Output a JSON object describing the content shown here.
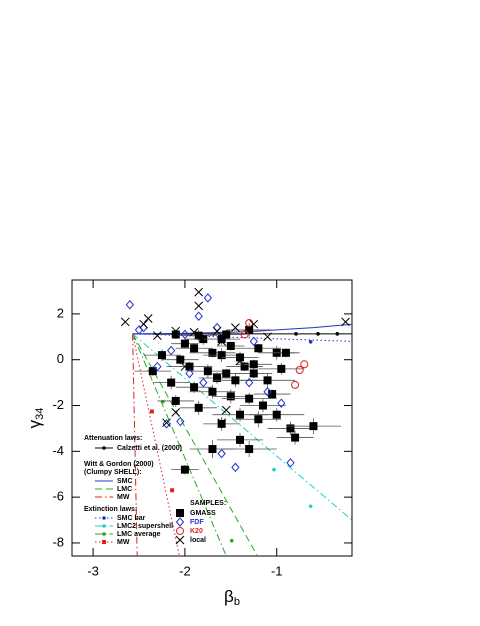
{
  "chart_data": {
    "type": "scatter",
    "x_label": "β",
    "x_label_sub": "b",
    "y_label": "γ",
    "y_label_sub": "34",
    "xlim": [
      -3.23,
      -0.18
    ],
    "ylim": [
      -8.57,
      3.48
    ],
    "xticks": [
      -3,
      -2,
      -1
    ],
    "yticks": [
      2,
      0,
      -2,
      -4,
      -6,
      -8
    ],
    "annotations": [
      "Attenuation laws:",
      "Witt & Gordon (2000)",
      "(Clumpy SHELL):",
      "Extinction laws:",
      "SAMPLES:"
    ],
    "series": [
      {
        "name": "Calzetti et al. (2000)",
        "color": "#000000",
        "dash": "solid",
        "marker": "dot",
        "x": [
          -2.57,
          -0.18
        ],
        "values": [
          1.13,
          1.13
        ],
        "marker_x": [
          -0.79,
          -0.55,
          -0.34
        ],
        "marker_values": [
          1.13,
          1.13,
          1.13
        ]
      },
      {
        "name": "SMC",
        "color": "#2233cc",
        "dash": "solid",
        "x": [
          -2.57,
          -2.0,
          -1.5,
          -1.2,
          -1.0,
          -0.6,
          -0.18
        ],
        "values": [
          1.13,
          1.15,
          1.2,
          1.25,
          1.3,
          1.4,
          1.55
        ]
      },
      {
        "name": "LMC",
        "color": "#22aa22",
        "dash": "dash",
        "x": [
          -2.57,
          -1.21
        ],
        "values": [
          1.13,
          -8.57
        ]
      },
      {
        "name": "MW",
        "color": "#dd2222",
        "dash": "dashdot",
        "x": [
          -2.57,
          -2.52
        ],
        "values": [
          1.13,
          -8.57
        ]
      },
      {
        "name": "SMC bar",
        "color": "#2233cc",
        "dash": "dot",
        "marker": "dot",
        "x": [
          -2.57,
          -0.18
        ],
        "values": [
          1.13,
          0.8
        ],
        "marker_x": [
          -0.63
        ],
        "marker_values": [
          0.78
        ]
      },
      {
        "name": "LMC2 supershell",
        "color": "#22cccc",
        "dash": "dashdot",
        "marker": "dot",
        "x": [
          -2.57,
          -0.18
        ],
        "values": [
          1.13,
          -7.0
        ],
        "marker_x": [
          -1.03,
          -0.63
        ],
        "marker_values": [
          -4.8,
          -6.4
        ]
      },
      {
        "name": "LMC average",
        "color": "#22aa22",
        "dash": "dashdot",
        "marker": "dot",
        "x": [
          -2.57,
          -1.55
        ],
        "values": [
          1.13,
          -8.57
        ],
        "marker_x": [
          -2.24,
          -1.49
        ],
        "marker_values": [
          -1.83,
          -7.9
        ]
      },
      {
        "name": "MW",
        "color": "#dd2222",
        "dash": "dot",
        "marker": "smallsquare",
        "x": [
          -2.57,
          -2.06
        ],
        "values": [
          1.13,
          -8.57
        ],
        "marker_x": [
          -2.36,
          -2.14
        ],
        "marker_values": [
          -2.26,
          -5.7
        ]
      },
      {
        "name": "GMASS",
        "color": "#000000",
        "marker": "square",
        "x": [
          -2.1,
          -1.85,
          -1.55,
          -1.3,
          -2.0,
          -1.9,
          -1.8,
          -1.7,
          -1.6,
          -1.5,
          -1.4,
          -1.2,
          -1.0,
          -0.9,
          -2.25,
          -2.05,
          -1.95,
          -1.75,
          -1.65,
          -1.55,
          -1.45,
          -1.35,
          -1.25,
          -1.1,
          -0.95,
          -2.35,
          -2.15,
          -1.9,
          -1.7,
          -1.5,
          -1.3,
          -1.15,
          -1.05,
          -1.4,
          -1.2,
          -1.0,
          -0.85,
          -0.8,
          -0.6,
          -1.85,
          -2.1,
          -1.7,
          -1.3,
          -1.4,
          -2.0,
          -1.6,
          -1.25,
          -1.6
        ],
        "values": [
          1.1,
          1.05,
          1.1,
          1.3,
          0.7,
          0.5,
          0.9,
          0.3,
          0.2,
          0.6,
          0.1,
          0.5,
          0.3,
          0.3,
          0.2,
          0.0,
          -0.3,
          -0.5,
          -0.8,
          -0.6,
          -0.9,
          -0.3,
          -0.6,
          -0.9,
          -0.4,
          -0.5,
          -1.0,
          -1.2,
          -1.4,
          -1.6,
          -1.7,
          -2.0,
          -1.5,
          -2.4,
          -2.6,
          -2.4,
          -3.0,
          -3.4,
          -2.9,
          -2.1,
          -1.8,
          -3.9,
          -3.9,
          -3.5,
          -4.8,
          -2.8,
          -0.2,
          0.9
        ],
        "xerr": [
          0.25,
          0.2,
          0.2,
          0.25,
          0.15,
          0.2,
          0.2,
          0.25,
          0.2,
          0.15,
          0.2,
          0.25,
          0.2,
          0.15,
          0.2,
          0.2,
          0.25,
          0.2,
          0.2,
          0.15,
          0.25,
          0.2,
          0.2,
          0.3,
          0.25,
          0.2,
          0.2,
          0.2,
          0.25,
          0.2,
          0.3,
          0.25,
          0.2,
          0.3,
          0.25,
          0.3,
          0.25,
          0.2,
          0.3,
          0.2,
          0.2,
          0.25,
          0.3,
          0.25,
          0.15,
          0.2,
          0.2,
          0.2
        ],
        "yerr": [
          0.2,
          0.25,
          0.2,
          0.3,
          0.2,
          0.2,
          0.25,
          0.2,
          0.3,
          0.2,
          0.25,
          0.2,
          0.3,
          0.2,
          0.25,
          0.2,
          0.2,
          0.3,
          0.25,
          0.2,
          0.3,
          0.2,
          0.2,
          0.3,
          0.25,
          0.2,
          0.3,
          0.25,
          0.3,
          0.3,
          0.25,
          0.3,
          0.2,
          0.3,
          0.35,
          0.3,
          0.3,
          0.3,
          0.35,
          0.3,
          0.25,
          0.4,
          0.35,
          0.3,
          0.2,
          0.3,
          0.2,
          0.25
        ]
      },
      {
        "name": "FDF",
        "color": "#2233cc",
        "marker": "diamond",
        "x": [
          -2.6,
          -2.45,
          -2.0,
          -1.75,
          -1.85,
          -2.15,
          -1.95,
          -1.8,
          -2.05,
          -2.2,
          -1.6,
          -1.45,
          -0.85,
          -1.3,
          -1.25,
          -2.3,
          -1.1,
          -2.5,
          -1.65,
          -0.95
        ],
        "values": [
          2.4,
          1.4,
          1.1,
          2.7,
          1.9,
          0.4,
          -0.6,
          -1.0,
          -2.7,
          -2.8,
          -4.1,
          -4.7,
          -4.5,
          -1.0,
          0.8,
          -0.3,
          -1.4,
          1.3,
          1.4,
          -1.9
        ]
      },
      {
        "name": "K20",
        "color": "#dd2222",
        "marker": "circle",
        "x": [
          -1.3,
          -0.7,
          -0.75,
          -0.8,
          -1.35
        ],
        "values": [
          1.6,
          -0.2,
          -0.45,
          -1.1,
          1.1
        ]
      },
      {
        "name": "local",
        "color": "#000000",
        "marker": "cross",
        "x": [
          -2.65,
          -2.4,
          -2.45,
          -1.85,
          -1.85,
          -1.65,
          -1.45,
          -1.25,
          -2.3,
          -2.1,
          -1.9,
          -1.6,
          -1.1,
          -2.2,
          -2.1,
          -1.6,
          -1.4,
          -2.0,
          -0.25,
          -1.55
        ],
        "values": [
          1.65,
          1.8,
          1.55,
          2.95,
          2.35,
          1.25,
          1.4,
          1.55,
          1.05,
          1.25,
          1.2,
          0.8,
          1.0,
          -2.75,
          -2.3,
          -2.75,
          -0.05,
          -0.3,
          1.65,
          -2.2
        ]
      }
    ]
  }
}
